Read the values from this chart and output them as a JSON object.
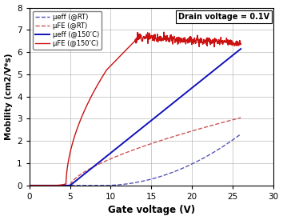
{
  "xlabel": "Gate voltage (V)",
  "ylabel": "Mobility (cm2/V*s)",
  "annotation": "Drain voltage = 0.1V",
  "xlim": [
    0,
    30
  ],
  "ylim": [
    0,
    8
  ],
  "xticks": [
    0,
    5,
    10,
    15,
    20,
    25,
    30
  ],
  "yticks": [
    0,
    1,
    2,
    3,
    4,
    5,
    6,
    7,
    8
  ],
  "legend_labels": [
    "μeff (@RT)",
    "μFE (@RT)",
    "μeff (@150’C)",
    "μFE (@150’C)"
  ],
  "colors": {
    "mueff_RT": "#5555bb",
    "muFE_RT": "#cc5555",
    "mueff_150": "#1111bb",
    "muFE_150": "#cc1111"
  }
}
